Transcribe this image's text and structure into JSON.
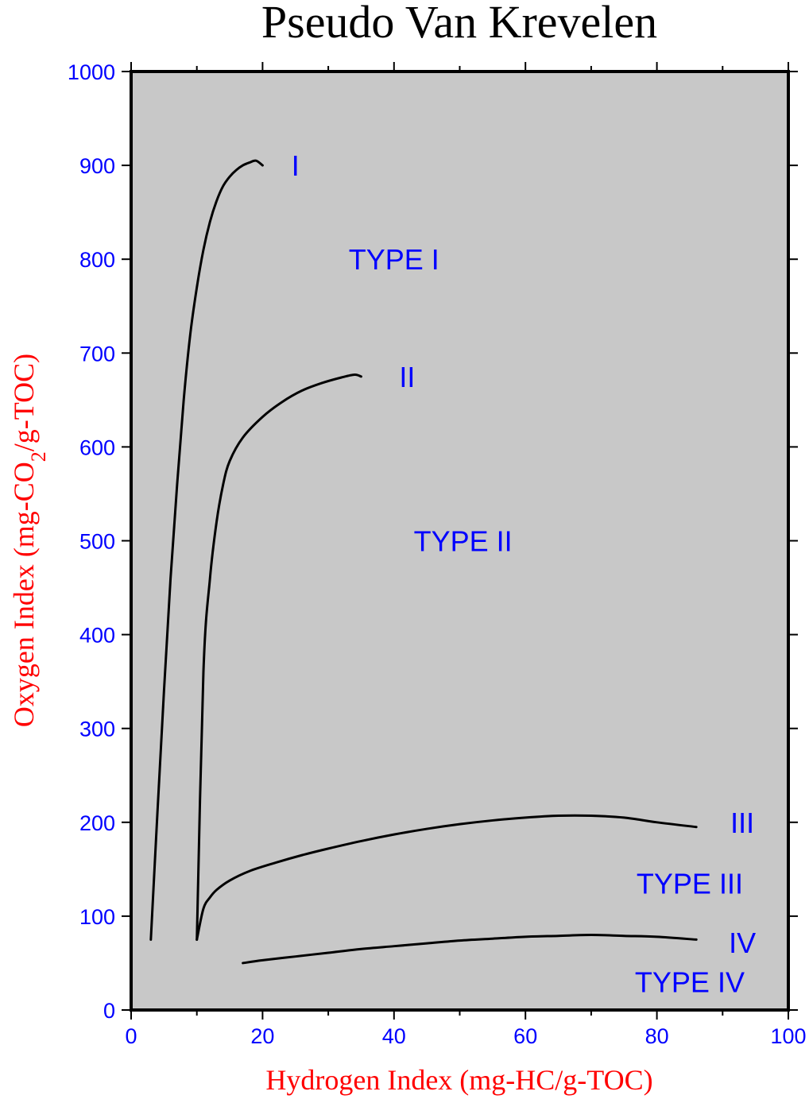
{
  "chart_data": {
    "type": "line",
    "title": "Pseudo Van Krevelen",
    "xlabel": "Hydrogen Index (mg-HC/g-TOC)",
    "ylabel": {
      "prefix": "Oxygen Index (mg-CO",
      "subscript": "2",
      "suffix": "/g-TOC)"
    },
    "xlim": [
      0,
      100
    ],
    "ylim": [
      0,
      1000
    ],
    "x_major_ticks": [
      0,
      20,
      40,
      60,
      80,
      100
    ],
    "x_minor_ticks": [
      10,
      30,
      50,
      70,
      90
    ],
    "y_major_ticks": [
      0,
      100,
      200,
      300,
      400,
      500,
      600,
      700,
      800,
      900,
      1000
    ],
    "x_tick_labels": [
      "0",
      "20",
      "40",
      "60",
      "80",
      "100"
    ],
    "y_tick_labels": [
      "0",
      "100",
      "200",
      "300",
      "400",
      "500",
      "600",
      "700",
      "800",
      "900",
      "1000"
    ],
    "grid": false,
    "background_color": "#c8c8c8",
    "line_color": "#000000",
    "tick_label_color": "#0000ff",
    "axis_label_color": "#ff0000",
    "annotation_color": "#0000ff",
    "series": [
      {
        "x": [
          3,
          4,
          5,
          6,
          7,
          8,
          9,
          10,
          11,
          12,
          13,
          14,
          15,
          16,
          17,
          18,
          19,
          20
        ],
        "y": [
          75,
          210,
          340,
          460,
          560,
          650,
          720,
          770,
          810,
          840,
          862,
          878,
          888,
          895,
          900,
          903,
          905,
          900
        ]
      },
      {
        "x": [
          10,
          11,
          12,
          13,
          14,
          15,
          17,
          20,
          23,
          26,
          29,
          32,
          34,
          35
        ],
        "y": [
          75,
          360,
          460,
          520,
          560,
          585,
          610,
          632,
          648,
          660,
          668,
          674,
          677,
          675
        ]
      },
      {
        "x": [
          10,
          11,
          12,
          13,
          15,
          18,
          22,
          26,
          30,
          35,
          40,
          45,
          50,
          55,
          60,
          65,
          70,
          75,
          80,
          86
        ],
        "y": [
          75,
          108,
          120,
          128,
          138,
          148,
          157,
          165,
          172,
          180,
          187,
          193,
          198,
          202,
          205,
          207,
          207,
          205,
          200,
          195
        ]
      },
      {
        "x": [
          17,
          20,
          25,
          30,
          35,
          40,
          45,
          50,
          55,
          60,
          65,
          70,
          75,
          80,
          86
        ],
        "y": [
          50,
          53,
          57,
          61,
          65,
          68,
          71,
          74,
          76,
          78,
          79,
          80,
          79,
          78,
          75
        ]
      }
    ],
    "annotations": [
      {
        "text": "I",
        "x": 25,
        "y": 900
      },
      {
        "text": "TYPE I",
        "x": 40,
        "y": 800
      },
      {
        "text": "II",
        "x": 42,
        "y": 675
      },
      {
        "text": "TYPE II",
        "x": 50.5,
        "y": 500
      },
      {
        "text": "III",
        "x": 93,
        "y": 200
      },
      {
        "text": "TYPE III",
        "x": 85,
        "y": 135
      },
      {
        "text": "IV",
        "x": 93,
        "y": 72
      },
      {
        "text": "TYPE IV",
        "x": 85,
        "y": 30
      }
    ]
  }
}
